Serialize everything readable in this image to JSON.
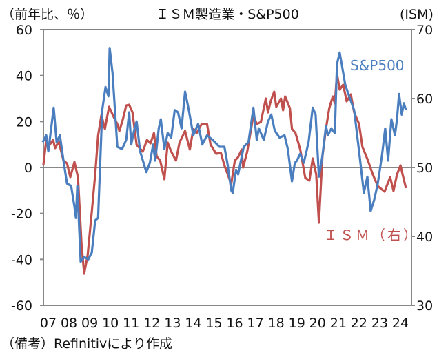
{
  "chart_data": {
    "type": "line",
    "title": "ＩＳＭ製造業・S&P500",
    "ylabel_left": "（前年比、％）",
    "ylabel_right": "(ISM)",
    "footnote": "（備考）Refinitivにより作成",
    "x_tick_labels": [
      "07",
      "08",
      "09",
      "10",
      "11",
      "12",
      "13",
      "14",
      "15",
      "16",
      "17",
      "18",
      "19",
      "20",
      "21",
      "22",
      "23",
      "24"
    ],
    "x_tick_years": [
      2007,
      2008,
      2009,
      2010,
      2011,
      2012,
      2013,
      2014,
      2015,
      2016,
      2017,
      2018,
      2019,
      2020,
      2021,
      2022,
      2023,
      2024
    ],
    "xlim": [
      2007.0,
      2024.75
    ],
    "y_left": {
      "lim": [
        -60,
        60
      ],
      "ticks": [
        "60",
        "40",
        "20",
        "0",
        "-20",
        "-40",
        "-60"
      ],
      "tick_values": [
        60,
        40,
        20,
        0,
        -20,
        -40,
        -60
      ]
    },
    "y_right": {
      "lim": [
        30,
        70
      ],
      "ticks": [
        "70",
        "60",
        "50",
        "40",
        "30"
      ],
      "tick_values": [
        70,
        60,
        50,
        40,
        30
      ]
    },
    "zero_line": true,
    "grid": false,
    "series": [
      {
        "name": "S&P500",
        "axis": "left",
        "color": "#4a7ebf",
        "points": [
          [
            2007.0,
            11
          ],
          [
            2007.17,
            14
          ],
          [
            2007.27,
            7
          ],
          [
            2007.53,
            26
          ],
          [
            2007.67,
            11
          ],
          [
            2007.83,
            14
          ],
          [
            2008.0,
            3
          ],
          [
            2008.17,
            -7
          ],
          [
            2008.37,
            -8
          ],
          [
            2008.53,
            -17
          ],
          [
            2008.6,
            -22
          ],
          [
            2008.67,
            -8
          ],
          [
            2008.83,
            -41
          ],
          [
            2009.0,
            -39
          ],
          [
            2009.2,
            -40
          ],
          [
            2009.37,
            -37
          ],
          [
            2009.53,
            -23
          ],
          [
            2009.67,
            -22
          ],
          [
            2009.87,
            25
          ],
          [
            2010.03,
            35
          ],
          [
            2010.17,
            31
          ],
          [
            2010.23,
            52
          ],
          [
            2010.37,
            41
          ],
          [
            2010.6,
            9
          ],
          [
            2010.83,
            8
          ],
          [
            2011.03,
            12
          ],
          [
            2011.17,
            24
          ],
          [
            2011.27,
            10
          ],
          [
            2011.43,
            17
          ],
          [
            2011.53,
            20
          ],
          [
            2011.7,
            7
          ],
          [
            2012.0,
            -2
          ],
          [
            2012.17,
            2
          ],
          [
            2012.33,
            10
          ],
          [
            2012.43,
            3
          ],
          [
            2012.6,
            17
          ],
          [
            2012.7,
            21
          ],
          [
            2012.87,
            8
          ],
          [
            2013.03,
            15
          ],
          [
            2013.2,
            13
          ],
          [
            2013.37,
            25
          ],
          [
            2013.53,
            24
          ],
          [
            2013.7,
            17
          ],
          [
            2013.87,
            33
          ],
          [
            2014.03,
            26
          ],
          [
            2014.27,
            14
          ],
          [
            2014.5,
            19
          ],
          [
            2014.7,
            10
          ],
          [
            2014.93,
            14
          ],
          [
            2015.2,
            12
          ],
          [
            2015.53,
            9
          ],
          [
            2015.77,
            9
          ],
          [
            2015.93,
            1
          ],
          [
            2016.1,
            -10
          ],
          [
            2016.17,
            -11
          ],
          [
            2016.33,
            -1
          ],
          [
            2016.43,
            -3
          ],
          [
            2016.7,
            9
          ],
          [
            2016.93,
            11
          ],
          [
            2017.17,
            26
          ],
          [
            2017.33,
            12
          ],
          [
            2017.43,
            17
          ],
          [
            2017.67,
            12
          ],
          [
            2017.87,
            20
          ],
          [
            2018.03,
            23
          ],
          [
            2018.2,
            16
          ],
          [
            2018.43,
            13
          ],
          [
            2018.67,
            14
          ],
          [
            2018.83,
            8
          ],
          [
            2019.03,
            -6
          ],
          [
            2019.17,
            2
          ],
          [
            2019.27,
            3
          ],
          [
            2019.43,
            6
          ],
          [
            2019.6,
            2
          ],
          [
            2019.83,
            11
          ],
          [
            2020.03,
            26
          ],
          [
            2020.17,
            23
          ],
          [
            2020.33,
            -4
          ],
          [
            2020.5,
            5
          ],
          [
            2020.67,
            18
          ],
          [
            2020.77,
            14
          ],
          [
            2020.93,
            17
          ],
          [
            2021.1,
            15
          ],
          [
            2021.2,
            45
          ],
          [
            2021.33,
            50
          ],
          [
            2021.43,
            45
          ],
          [
            2021.6,
            36
          ],
          [
            2021.83,
            30
          ],
          [
            2022.03,
            25
          ],
          [
            2022.27,
            7
          ],
          [
            2022.5,
            -11
          ],
          [
            2022.67,
            -4
          ],
          [
            2022.83,
            -19
          ],
          [
            2023.0,
            -14
          ],
          [
            2023.17,
            -7
          ],
          [
            2023.37,
            5
          ],
          [
            2023.53,
            17
          ],
          [
            2023.67,
            3
          ],
          [
            2023.83,
            21
          ],
          [
            2024.0,
            14
          ],
          [
            2024.1,
            21
          ],
          [
            2024.2,
            32
          ],
          [
            2024.33,
            23
          ],
          [
            2024.43,
            28
          ],
          [
            2024.53,
            25
          ]
        ]
      },
      {
        "name": "ＩＳＭ（右）",
        "axis": "right",
        "color": "#c0504d",
        "points": [
          [
            2007.03,
            50.3
          ],
          [
            2007.17,
            54.0
          ],
          [
            2007.27,
            53.0
          ],
          [
            2007.5,
            54.0
          ],
          [
            2007.6,
            52.8
          ],
          [
            2007.77,
            53.8
          ],
          [
            2008.0,
            51.0
          ],
          [
            2008.17,
            50.6
          ],
          [
            2008.33,
            48.6
          ],
          [
            2008.53,
            50.8
          ],
          [
            2008.7,
            48.6
          ],
          [
            2008.87,
            39.0
          ],
          [
            2009.0,
            34.6
          ],
          [
            2009.17,
            37.3
          ],
          [
            2009.37,
            43.6
          ],
          [
            2009.53,
            49.0
          ],
          [
            2009.67,
            54.6
          ],
          [
            2009.83,
            57.6
          ],
          [
            2010.0,
            55.6
          ],
          [
            2010.2,
            58.8
          ],
          [
            2010.43,
            57.3
          ],
          [
            2010.6,
            56.3
          ],
          [
            2010.7,
            55.3
          ],
          [
            2010.87,
            57.0
          ],
          [
            2011.03,
            59.0
          ],
          [
            2011.17,
            59.1
          ],
          [
            2011.33,
            58.0
          ],
          [
            2011.53,
            53.3
          ],
          [
            2011.83,
            52.3
          ],
          [
            2012.03,
            54.0
          ],
          [
            2012.2,
            53.5
          ],
          [
            2012.37,
            55.0
          ],
          [
            2012.5,
            51.6
          ],
          [
            2012.67,
            51.0
          ],
          [
            2012.87,
            48.3
          ],
          [
            2013.03,
            53.6
          ],
          [
            2013.2,
            52.3
          ],
          [
            2013.43,
            51.0
          ],
          [
            2013.6,
            53.6
          ],
          [
            2013.87,
            55.3
          ],
          [
            2014.1,
            52.6
          ],
          [
            2014.27,
            55.6
          ],
          [
            2014.43,
            55.0
          ],
          [
            2014.67,
            56.3
          ],
          [
            2014.93,
            56.3
          ],
          [
            2015.1,
            53.3
          ],
          [
            2015.37,
            52.0
          ],
          [
            2015.6,
            52.1
          ],
          [
            2015.77,
            50.3
          ],
          [
            2015.93,
            49.0
          ],
          [
            2016.1,
            47.6
          ],
          [
            2016.27,
            51.0
          ],
          [
            2016.43,
            51.5
          ],
          [
            2016.6,
            52.6
          ],
          [
            2016.67,
            50.0
          ],
          [
            2016.87,
            52.3
          ],
          [
            2017.17,
            57.6
          ],
          [
            2017.33,
            56.3
          ],
          [
            2017.53,
            56.6
          ],
          [
            2017.77,
            60.0
          ],
          [
            2017.87,
            58.0
          ],
          [
            2018.0,
            59.6
          ],
          [
            2018.17,
            61.0
          ],
          [
            2018.27,
            58.8
          ],
          [
            2018.5,
            60.0
          ],
          [
            2018.6,
            58.3
          ],
          [
            2018.7,
            60.3
          ],
          [
            2018.93,
            58.6
          ],
          [
            2019.03,
            55.6
          ],
          [
            2019.2,
            55.0
          ],
          [
            2019.43,
            52.6
          ],
          [
            2019.67,
            48.5
          ],
          [
            2019.87,
            48.1
          ],
          [
            2020.03,
            51.3
          ],
          [
            2020.2,
            49.0
          ],
          [
            2020.33,
            42.0
          ],
          [
            2020.5,
            51.6
          ],
          [
            2020.67,
            55.6
          ],
          [
            2020.83,
            58.6
          ],
          [
            2021.0,
            60.3
          ],
          [
            2021.1,
            59.3
          ],
          [
            2021.2,
            63.6
          ],
          [
            2021.33,
            61.3
          ],
          [
            2021.5,
            62.0
          ],
          [
            2021.67,
            59.6
          ],
          [
            2021.87,
            60.6
          ],
          [
            2022.03,
            58.0
          ],
          [
            2022.27,
            56.3
          ],
          [
            2022.43,
            53.0
          ],
          [
            2022.7,
            51.0
          ],
          [
            2022.93,
            49.0
          ],
          [
            2023.17,
            47.3
          ],
          [
            2023.5,
            46.5
          ],
          [
            2023.77,
            48.6
          ],
          [
            2023.93,
            46.6
          ],
          [
            2024.1,
            49.0
          ],
          [
            2024.27,
            50.3
          ],
          [
            2024.37,
            49.0
          ],
          [
            2024.53,
            47.0
          ]
        ]
      }
    ]
  }
}
